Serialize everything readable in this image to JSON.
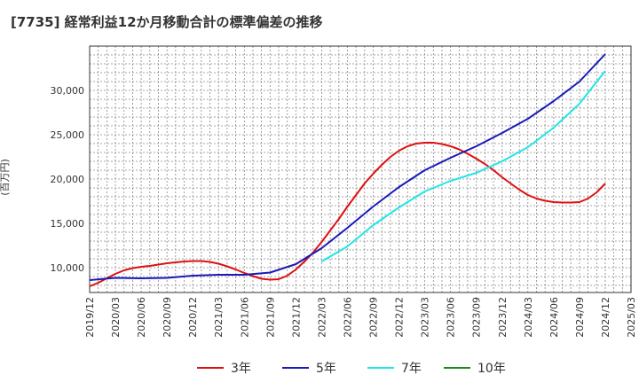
{
  "chart_data": {
    "type": "line",
    "title": "[7735]  経常利益12か月移動合計の標準偏差の推移",
    "ylabel": "(百万円)",
    "ylim": [
      7200,
      35000
    ],
    "yticks": [
      10000,
      15000,
      20000,
      25000,
      30000
    ],
    "ytick_labels": [
      "10,000",
      "15,000",
      "20,000",
      "25,000",
      "30,000"
    ],
    "xticks": [
      "2019/12",
      "2020/03",
      "2020/06",
      "2020/09",
      "2020/12",
      "2021/03",
      "2021/06",
      "2021/09",
      "2021/12",
      "2022/03",
      "2022/06",
      "2022/09",
      "2022/12",
      "2023/03",
      "2023/06",
      "2023/09",
      "2023/12",
      "2024/03",
      "2024/06",
      "2024/09",
      "2024/12",
      "2025/03"
    ],
    "grid": true,
    "legend_position": "bottom",
    "series": [
      {
        "name": "3年",
        "color": "#dd1111",
        "x": [
          "2019/12",
          "2020/01",
          "2020/02",
          "2020/03",
          "2020/04",
          "2020/05",
          "2020/06",
          "2020/07",
          "2020/08",
          "2020/09",
          "2020/10",
          "2020/11",
          "2020/12",
          "2021/01",
          "2021/02",
          "2021/03",
          "2021/04",
          "2021/05",
          "2021/06",
          "2021/07",
          "2021/08",
          "2021/09",
          "2021/10",
          "2021/11",
          "2021/12",
          "2022/01",
          "2022/02",
          "2022/03",
          "2022/04",
          "2022/05",
          "2022/06",
          "2022/07",
          "2022/08",
          "2022/09",
          "2022/10",
          "2022/11",
          "2022/12",
          "2023/01",
          "2023/02",
          "2023/03",
          "2023/04",
          "2023/05",
          "2023/06",
          "2023/07",
          "2023/08",
          "2023/09",
          "2023/10",
          "2023/11",
          "2023/12",
          "2024/01",
          "2024/02",
          "2024/03",
          "2024/04",
          "2024/05",
          "2024/06",
          "2024/07",
          "2024/08",
          "2024/09",
          "2024/10",
          "2024/11",
          "2024/12"
        ],
        "values": [
          7900,
          8300,
          8800,
          9300,
          9700,
          9950,
          10100,
          10200,
          10350,
          10500,
          10600,
          10700,
          10750,
          10750,
          10650,
          10450,
          10150,
          9800,
          9400,
          9050,
          8750,
          8650,
          8700,
          9100,
          9800,
          10700,
          11700,
          12900,
          14200,
          15500,
          16900,
          18200,
          19500,
          20600,
          21600,
          22500,
          23200,
          23700,
          24000,
          24100,
          24100,
          23950,
          23700,
          23350,
          22850,
          22300,
          21700,
          21000,
          20200,
          19500,
          18800,
          18200,
          17800,
          17550,
          17400,
          17350,
          17350,
          17400,
          17800,
          18500,
          19500
        ]
      },
      {
        "name": "5年",
        "color": "#1a1ab8",
        "x": [
          "2019/12",
          "2020/03",
          "2020/06",
          "2020/09",
          "2020/12",
          "2021/03",
          "2021/06",
          "2021/09",
          "2021/12",
          "2022/03",
          "2022/06",
          "2022/09",
          "2022/12",
          "2023/03",
          "2023/06",
          "2023/09",
          "2023/12",
          "2024/03",
          "2024/06",
          "2024/09",
          "2024/12"
        ],
        "values": [
          8600,
          8850,
          8800,
          8850,
          9100,
          9200,
          9200,
          9450,
          10400,
          12200,
          14500,
          16900,
          19100,
          21000,
          22400,
          23700,
          25200,
          26800,
          28800,
          31000,
          34100
        ]
      },
      {
        "name": "7年",
        "color": "#22e5e5",
        "x": [
          "2022/03",
          "2022/06",
          "2022/09",
          "2022/12",
          "2023/03",
          "2023/06",
          "2023/09",
          "2023/12",
          "2024/03",
          "2024/06",
          "2024/09",
          "2024/12"
        ],
        "values": [
          10700,
          12400,
          14800,
          16800,
          18600,
          19800,
          20700,
          22000,
          23600,
          25800,
          28500,
          32200
        ]
      },
      {
        "name": "10年",
        "color": "#1a8a1a",
        "x": [],
        "values": []
      }
    ]
  }
}
